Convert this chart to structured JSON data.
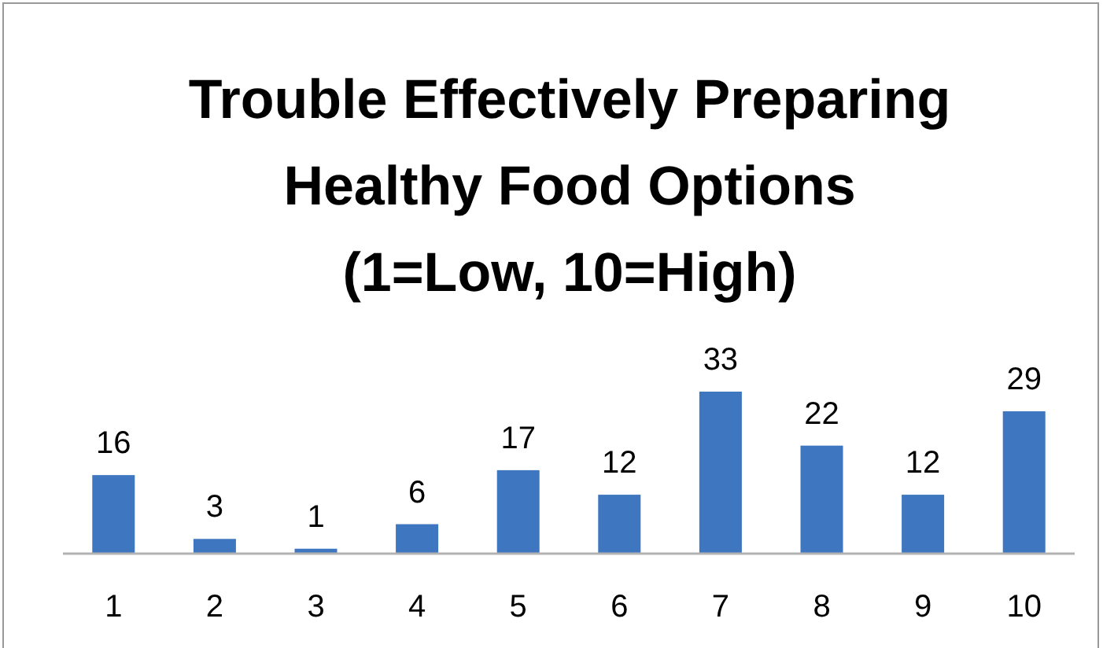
{
  "chart_data": {
    "type": "bar",
    "title": "Trouble Effectively Preparing Healthy Food Options (1=Low, 10=High)",
    "categories": [
      "1",
      "2",
      "3",
      "4",
      "5",
      "6",
      "7",
      "8",
      "9",
      "10"
    ],
    "values": [
      16,
      3,
      1,
      6,
      17,
      12,
      33,
      22,
      12,
      29
    ],
    "color": "#3f76c0",
    "data_labels": true
  }
}
